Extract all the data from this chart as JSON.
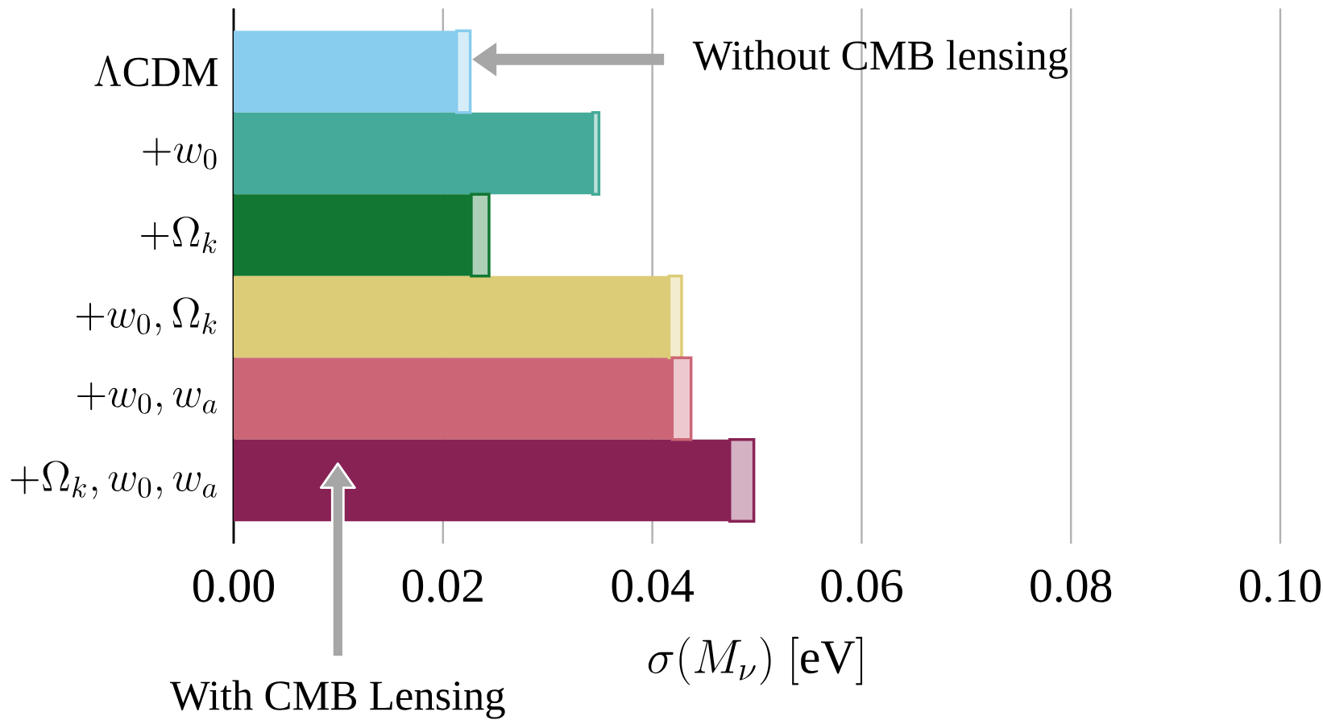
{
  "chart_data": {
    "type": "bar",
    "orientation": "horizontal",
    "stacked": true,
    "categories": [
      "\\Lambda\\mathrm{CDM}",
      "+w_0",
      "+\\Omega_k",
      "+w_0, \\Omega_k",
      "+w_0, w_a",
      "+\\Omega_k, w_0, w_a"
    ],
    "series": [
      {
        "colors": [
          "#88ccee",
          "#44aa99",
          "#117733",
          "#ddcc77",
          "#cc6677",
          "#882255"
        ],
        "values": [
          0.0213,
          0.0343,
          0.0227,
          0.0416,
          0.0419,
          0.0474
        ]
      },
      {
        "colors": [
          "#88ccee",
          "#44aa99",
          "#117733",
          "#ddcc77",
          "#cc6677",
          "#882255"
        ],
        "values": [
          0.0013,
          0.0006,
          0.0017,
          0.0012,
          0.0018,
          0.0023
        ]
      }
    ],
    "xlabel": "\\sigma(M_\\nu)\\ [\\mathrm{eV}]",
    "xlim": [
      0,
      0.1
    ],
    "xticks": [
      {
        "value": 0,
        "label": "0.00"
      },
      {
        "value": 0.02,
        "label": "0.02"
      },
      {
        "value": 0.04,
        "label": "0.04"
      },
      {
        "value": 0.06,
        "label": "0.06"
      },
      {
        "value": 0.08,
        "label": "0.08"
      },
      {
        "value": 0.1,
        "label": "0.10"
      }
    ],
    "grid": "x",
    "annotations": [
      "Without CMB lensing",
      "With CMB Lensing"
    ]
  }
}
